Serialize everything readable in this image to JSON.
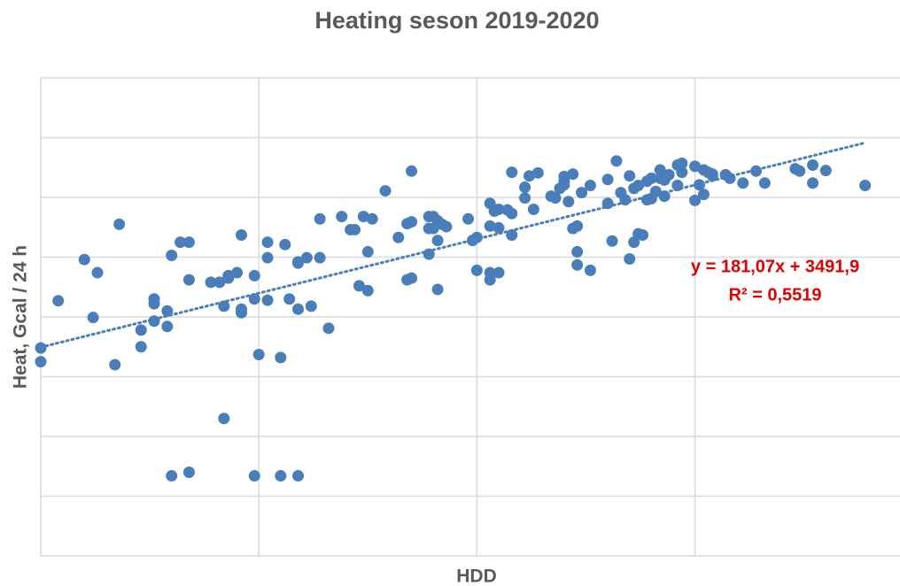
{
  "chart_data": {
    "type": "scatter",
    "title": "Heating seson 2019-2020",
    "x_label": "HDD",
    "y_label": "Heat, Gcal / 24 h",
    "color": "#4a7ebb",
    "xlim": [
      0,
      19.7
    ],
    "ylim": [
      0,
      8000
    ],
    "xticks": [
      0,
      5,
      10,
      15
    ],
    "yticks": [
      0,
      1000,
      2000,
      3000,
      4000,
      5000,
      6000,
      7000,
      8000
    ],
    "grid": true,
    "x": [
      0,
      0,
      0.4,
      1.0,
      1.2,
      1.3,
      1.7,
      1.8,
      2.3,
      2.3,
      2.6,
      2.6,
      2.6,
      2.9,
      2.9,
      3.0,
      3.0,
      3.2,
      3.4,
      3.4,
      3.4,
      3.9,
      4.1,
      4.2,
      4.2,
      4.3,
      4.3,
      4.5,
      4.6,
      4.6,
      4.6,
      4.9,
      4.9,
      4.9,
      5.0,
      5.2,
      5.2,
      5.2,
      5.5,
      5.5,
      5.6,
      5.7,
      5.9,
      5.9,
      5.9,
      5.9,
      6.1,
      6.2,
      6.4,
      6.4,
      6.6,
      6.9,
      7.1,
      7.2,
      7.3,
      7.4,
      7.5,
      7.5,
      7.6,
      7.9,
      8.2,
      8.4,
      8.4,
      8.5,
      8.5,
      8.5,
      8.9,
      8.9,
      8.9,
      9.0,
      9.0,
      9.1,
      9.1,
      9.1,
      9.2,
      9.3,
      9.8,
      9.9,
      10.0,
      10.0,
      10.3,
      10.3,
      10.3,
      10.3,
      10.4,
      10.5,
      10.5,
      10.5,
      10.7,
      10.8,
      10.8,
      10.8,
      11.1,
      11.1,
      11.2,
      11.3,
      11.4,
      11.7,
      11.8,
      11.9,
      12.0,
      12.0,
      12.0,
      12.1,
      12.2,
      12.2,
      12.3,
      12.3,
      12.3,
      12.4,
      12.6,
      12.6,
      13.0,
      13.0,
      13.1,
      13.2,
      13.3,
      13.4,
      13.5,
      13.5,
      13.6,
      13.6,
      13.7,
      13.7,
      13.8,
      13.9,
      13.9,
      14.0,
      14.0,
      14.1,
      14.2,
      14.2,
      14.3,
      14.3,
      14.4,
      14.6,
      14.6,
      14.7,
      14.7,
      15.0,
      15.0,
      15.1,
      15.2,
      15.2,
      15.3,
      15.4,
      15.4,
      15.7,
      15.8,
      16.1,
      16.4,
      16.6,
      17.3,
      17.4,
      17.7,
      17.7,
      18.0,
      18.9
    ],
    "values": [
      3480,
      3250,
      4270,
      4960,
      3990,
      4740,
      3200,
      5550,
      3780,
      3500,
      3930,
      4300,
      4220,
      4100,
      3840,
      5030,
      1340,
      5250,
      5250,
      4620,
      1400,
      4580,
      4580,
      4180,
      2300,
      4650,
      4690,
      4740,
      5370,
      4130,
      4070,
      4300,
      4690,
      1340,
      3370,
      4280,
      4990,
      5250,
      1340,
      3320,
      5210,
      4300,
      4920,
      4900,
      1340,
      4130,
      4990,
      4180,
      5640,
      4990,
      3810,
      5680,
      5460,
      5460,
      4520,
      5680,
      4440,
      5090,
      5640,
      6110,
      5330,
      5560,
      4620,
      6440,
      5590,
      4650,
      5480,
      5680,
      5050,
      5480,
      5680,
      5610,
      4460,
      5280,
      5550,
      5510,
      5640,
      5280,
      5330,
      4780,
      5900,
      5520,
      4620,
      4740,
      5770,
      5490,
      4740,
      5800,
      5790,
      5730,
      6420,
      5370,
      6170,
      5990,
      6360,
      5800,
      6410,
      6020,
      5990,
      6150,
      6210,
      6270,
      6350,
      5930,
      6390,
      5480,
      5520,
      5090,
      4870,
      6080,
      4780,
      6200,
      5900,
      6300,
      5270,
      6610,
      6080,
      5960,
      4970,
      6360,
      5250,
      6150,
      6200,
      5390,
      5370,
      6270,
      5960,
      6320,
      5980,
      6100,
      6460,
      6320,
      6290,
      6020,
      6380,
      6540,
      6200,
      6570,
      6420,
      6520,
      5950,
      6210,
      6460,
      6050,
      6420,
      6390,
      6360,
      6380,
      6320,
      6240,
      6440,
      6240,
      6480,
      6440,
      6540,
      6240,
      6450,
      6200
    ],
    "trendline": {
      "slope": 181.07,
      "intercept": 3491.9,
      "color": "#4a7ebb",
      "equation": "y = 181,07x + 3491,9",
      "r_squared": "R² = 0,5519",
      "label_color": "#e00000"
    }
  }
}
